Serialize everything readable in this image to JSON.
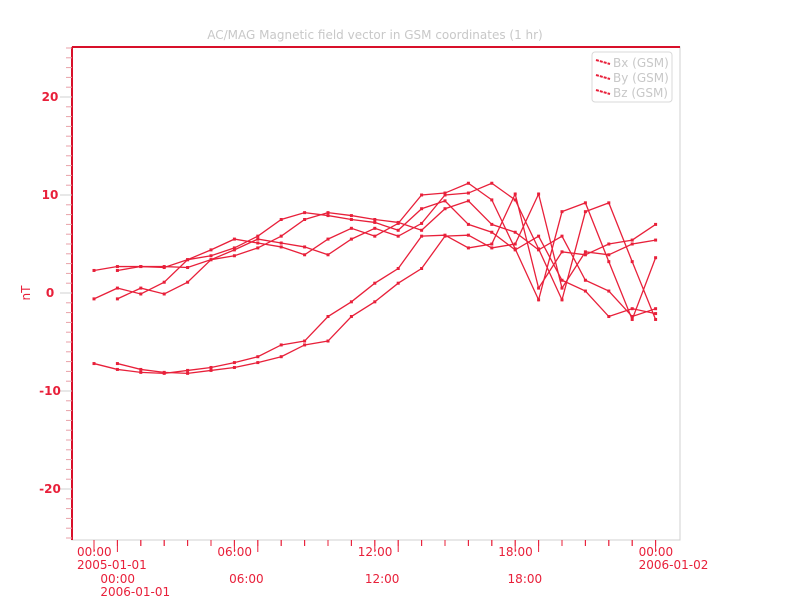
{
  "chart_data": {
    "type": "line",
    "title": "AC/MAG  Magnetic field vector in GSM coordinates (1 hr)",
    "ylabel": "nT",
    "xlabel": "",
    "ylim": [
      -25,
      25
    ],
    "xlim_hours": [
      -1,
      25
    ],
    "y_ticks": [
      20,
      10,
      0,
      -10,
      -20
    ],
    "y_tick_labels": [
      "20",
      "10",
      "0",
      "-10",
      "-20"
    ],
    "x_tick_labels": [
      {
        "hour": 0,
        "time": "00:00",
        "date": "2005-01-01"
      },
      {
        "hour": 1,
        "time": "00:00",
        "date": "2006-01-01"
      },
      {
        "hour": 6,
        "time": "06:00",
        "date": ""
      },
      {
        "hour": 6.5,
        "time": "06:00",
        "date": ""
      },
      {
        "hour": 12,
        "time": "12:00",
        "date": ""
      },
      {
        "hour": 12.3,
        "time": "12:00",
        "date": ""
      },
      {
        "hour": 18,
        "time": "18:00",
        "date": ""
      },
      {
        "hour": 18.4,
        "time": "18:00",
        "date": ""
      },
      {
        "hour": 24,
        "time": "00:00",
        "date": "2006-01-02"
      }
    ],
    "overlay_offset_hours": 1,
    "legend_position": "top-right",
    "grid": false,
    "x_hours": [
      0,
      1,
      2,
      3,
      4,
      5,
      6,
      7,
      8,
      9,
      10,
      11,
      12,
      13,
      14,
      15,
      16,
      17,
      18,
      19,
      20,
      21,
      22,
      23,
      24
    ],
    "series": [
      {
        "name": "Bx (GSM)",
        "values": [
          2.3,
          2.7,
          2.7,
          2.6,
          3.4,
          3.8,
          4.6,
          5.8,
          7.5,
          8.2,
          7.9,
          7.5,
          7.2,
          6.4,
          8.6,
          9.4,
          7.0,
          6.2,
          4.4,
          5.8,
          1.3,
          0.2,
          -2.4,
          -1.6,
          -2.1
        ]
      },
      {
        "name": "By (GSM)",
        "values": [
          -0.6,
          0.5,
          -0.1,
          1.1,
          3.4,
          4.4,
          5.5,
          5.1,
          4.7,
          3.9,
          5.5,
          6.6,
          5.8,
          7.1,
          10.0,
          10.2,
          11.2,
          9.5,
          4.5,
          -0.7,
          8.3,
          9.2,
          3.2,
          -2.7,
          3.6
        ]
      },
      {
        "name": "Bz (GSM)",
        "values": [
          -7.2,
          -7.8,
          -8.1,
          -8.2,
          -7.9,
          -7.6,
          -7.1,
          -6.5,
          -5.3,
          -4.9,
          -2.4,
          -0.9,
          1.0,
          2.5,
          5.8,
          5.9,
          4.6,
          5.0,
          10.1,
          0.5,
          4.2,
          3.9,
          5.0,
          5.4,
          7.0
        ]
      }
    ],
    "colors": {
      "series": "#e8203a",
      "frame": "#d0d0d0",
      "title": "#c8c8c8"
    }
  }
}
